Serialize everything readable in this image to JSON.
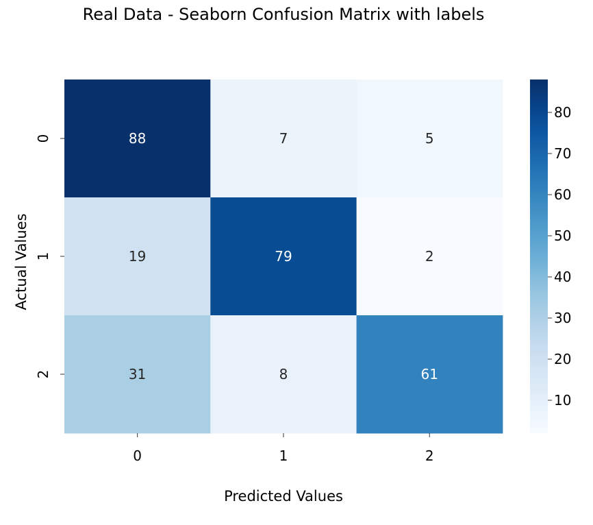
{
  "chart_data": {
    "type": "heatmap",
    "title": "Real Data - Seaborn Confusion Matrix with labels",
    "xlabel": "Predicted Values",
    "ylabel": "Actual Values",
    "x_categories": [
      "0",
      "1",
      "2"
    ],
    "y_categories": [
      "0",
      "1",
      "2"
    ],
    "values": [
      [
        88,
        7,
        5
      ],
      [
        19,
        79,
        2
      ],
      [
        31,
        8,
        61
      ]
    ],
    "colorscale": "Blues",
    "color_range": [
      2,
      88
    ],
    "colorbar_ticks": [
      "10",
      "20",
      "30",
      "40",
      "50",
      "60",
      "70",
      "80"
    ],
    "colorbar_tick_values": [
      10,
      20,
      30,
      40,
      50,
      60,
      70,
      80
    ]
  }
}
